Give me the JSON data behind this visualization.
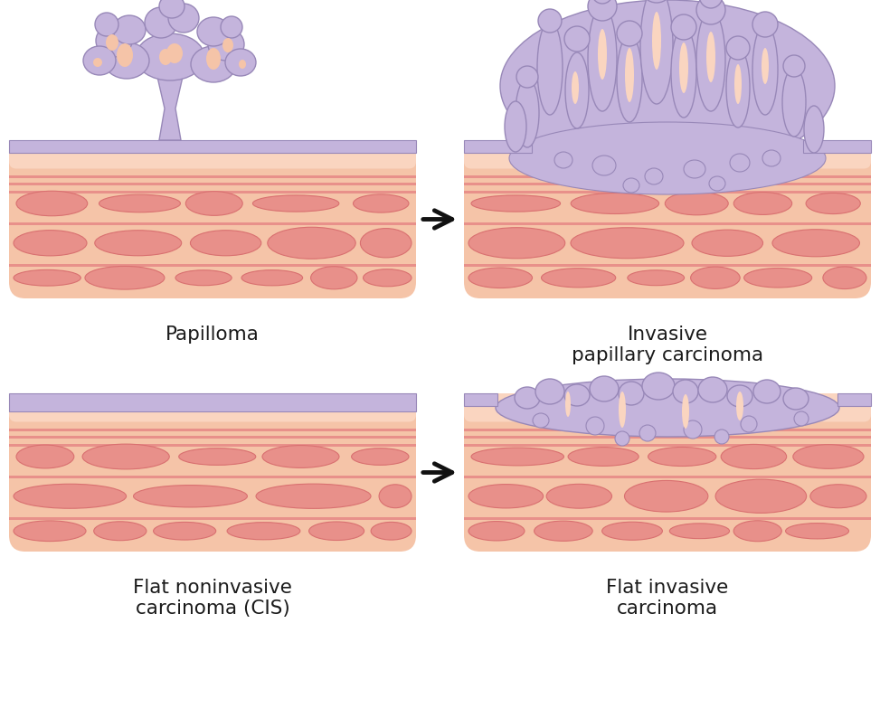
{
  "bg_color": "#ffffff",
  "salmon_light": "#FAD5C0",
  "salmon_bg": "#F5C4A8",
  "pink_muscle_dark": "#D97070",
  "pink_muscle_med": "#E8908A",
  "pink_muscle_light": "#EFB0A8",
  "pink_stripe": "#D87878",
  "purple_epi": "#B8A8D4",
  "purple_epi_edge": "#9888B8",
  "purple_epi_fill": "#C4B4DC",
  "arrow_color": "#111111",
  "text_color": "#1a1a1a",
  "label_papilloma": "Papilloma",
  "label_invasive_papillary": "Invasive\npapillary carcinoma",
  "label_flat_noninvasive": "Flat noninvasive\ncarcinoma (CIS)",
  "label_flat_invasive": "Flat invasive\ncarcinoma",
  "font_size": 15.5
}
